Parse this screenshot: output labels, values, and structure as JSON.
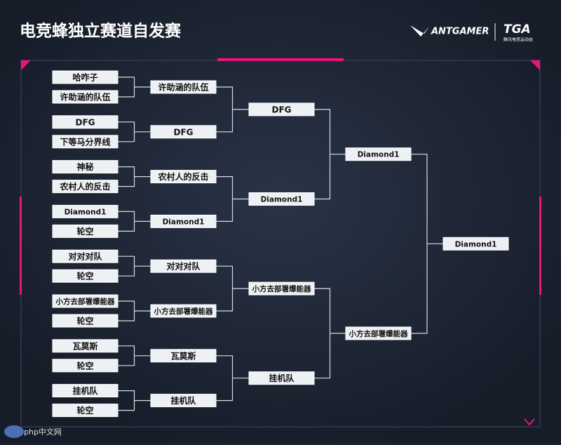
{
  "header": {
    "title": "电竞蜂独立赛道自发赛",
    "logo_text": "ANTGAMER",
    "logo2_text": "TGA",
    "logo2_subtext": "腾讯电竞运动会"
  },
  "rounds": [
    [
      "哈咋子",
      "许助涵的队伍",
      "DFG",
      "下等马分界线",
      "神秘",
      "农村人的反击",
      "Diamond1",
      "轮空",
      "对对对队",
      "轮空",
      "小方去部署爆能器",
      "轮空",
      "瓦莫斯",
      "轮空",
      "挂机队",
      "轮空"
    ],
    [
      "许助涵的队伍",
      "DFG",
      "农村人的反击",
      "Diamond1",
      "对对对队",
      "小方去部署爆能器",
      "瓦莫斯",
      "挂机队"
    ],
    [
      "DFG",
      "Diamond1",
      "小方去部署爆能器",
      "挂机队"
    ],
    [
      "Diamond1",
      "小方去部署爆能器"
    ],
    [
      "Diamond1"
    ]
  ],
  "watermark": "php中文网"
}
